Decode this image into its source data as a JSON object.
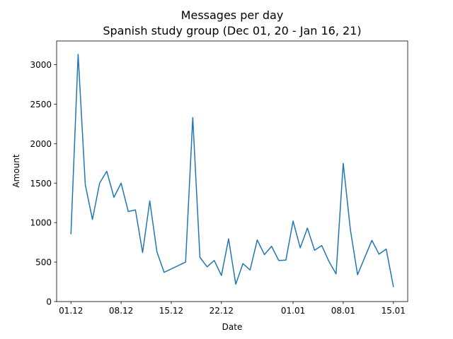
{
  "chart_data": {
    "type": "line",
    "title": "Messages per day",
    "subtitle": "Spanish study group (Dec 01, 20 - Jan 16, 21)",
    "xlabel": "Date",
    "ylabel": "Amount",
    "ylim": [
      0,
      3300
    ],
    "xlim": [
      "2020-11-29",
      "2021-01-17"
    ],
    "grid": false,
    "line_color": "#1f77b4",
    "x_ticks": [
      {
        "date": "2020-12-01",
        "label": "01.12"
      },
      {
        "date": "2020-12-08",
        "label": "08.12"
      },
      {
        "date": "2020-12-15",
        "label": "15.12"
      },
      {
        "date": "2020-12-22",
        "label": "22.12"
      },
      {
        "date": "2021-01-01",
        "label": "01.01"
      },
      {
        "date": "2021-01-08",
        "label": "08.01"
      },
      {
        "date": "2021-01-15",
        "label": "15.01"
      }
    ],
    "y_ticks": [
      0,
      500,
      1000,
      1500,
      2000,
      2500,
      3000
    ],
    "series": [
      {
        "x": [
          "2020-12-01",
          "2020-12-02",
          "2020-12-03",
          "2020-12-04",
          "2020-12-05",
          "2020-12-06",
          "2020-12-07",
          "2020-12-08",
          "2020-12-09",
          "2020-12-10",
          "2020-12-11",
          "2020-12-12",
          "2020-12-13",
          "2020-12-14",
          "2020-12-17",
          "2020-12-18",
          "2020-12-19",
          "2020-12-20",
          "2020-12-21",
          "2020-12-22",
          "2020-12-23",
          "2020-12-24",
          "2020-12-25",
          "2020-12-26",
          "2020-12-27",
          "2020-12-28",
          "2020-12-29",
          "2020-12-30",
          "2020-12-31",
          "2021-01-01",
          "2021-01-02",
          "2021-01-03",
          "2021-01-04",
          "2021-01-05",
          "2021-01-06",
          "2021-01-07",
          "2021-01-08",
          "2021-01-09",
          "2021-01-10",
          "2021-01-12",
          "2021-01-13",
          "2021-01-14",
          "2021-01-15"
        ],
        "values": [
          860,
          3130,
          1480,
          1040,
          1500,
          1650,
          1320,
          1500,
          1140,
          1160,
          620,
          1275,
          630,
          370,
          500,
          2330,
          560,
          440,
          520,
          330,
          795,
          220,
          480,
          400,
          780,
          595,
          700,
          520,
          525,
          1020,
          680,
          930,
          650,
          710,
          510,
          350,
          1750,
          910,
          340,
          775,
          600,
          665,
          190
        ]
      }
    ]
  }
}
